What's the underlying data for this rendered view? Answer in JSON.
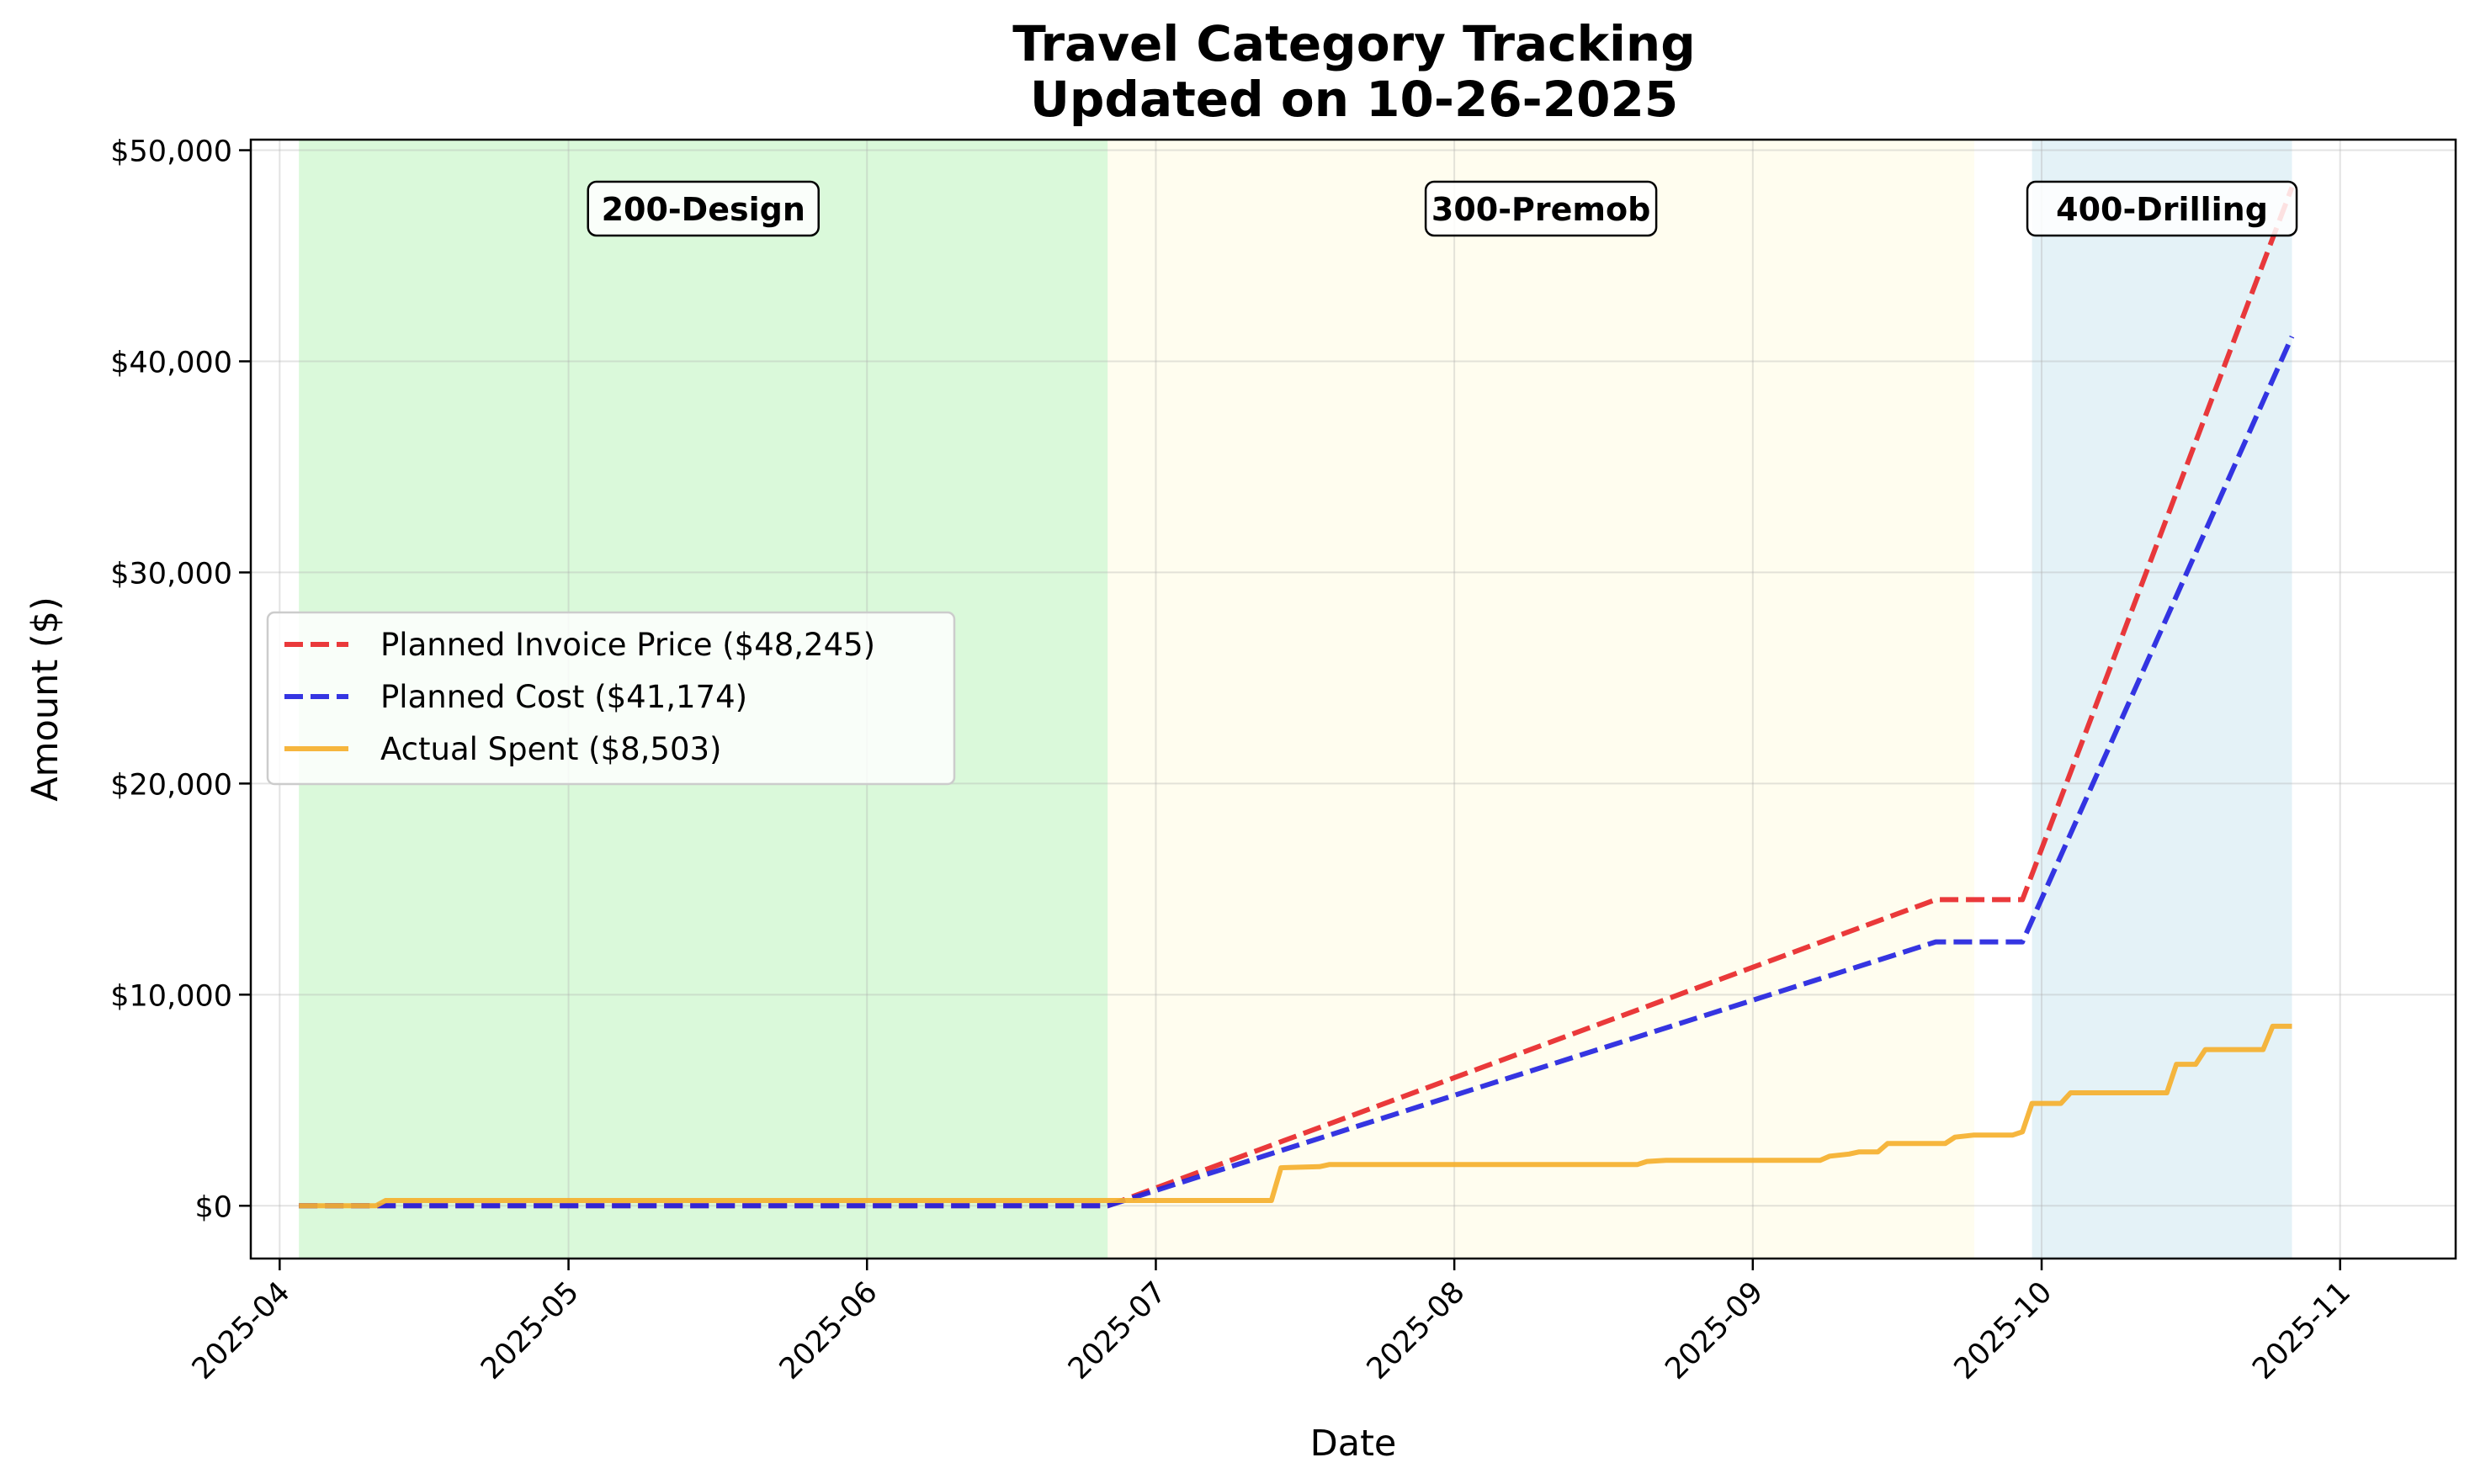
{
  "chart_data": {
    "type": "line",
    "title": "Travel Category Tracking",
    "subtitle": "Updated on 10-26-2025",
    "xlabel": "Date",
    "ylabel": "Amount ($)",
    "x_ticks": [
      "2025-04",
      "2025-05",
      "2025-06",
      "2025-07",
      "2025-08",
      "2025-09",
      "2025-10",
      "2025-11"
    ],
    "y_ticks": [
      "$0",
      "$10,000",
      "$20,000",
      "$30,000",
      "$40,000",
      "$50,000"
    ],
    "y_tick_values": [
      0,
      10000,
      20000,
      30000,
      40000,
      50000
    ],
    "xlim": [
      "2025-03-29",
      "2025-11-13"
    ],
    "ylim": [
      -2500,
      50500
    ],
    "grid": true,
    "legend_position": "center-left",
    "phases": [
      {
        "label": "200-Design",
        "start": "2025-04-03",
        "end": "2025-06-26",
        "color": "#90ee90"
      },
      {
        "label": "300-Premob",
        "start": "2025-06-26",
        "end": "2025-09-24",
        "color": "#fffacd"
      },
      {
        "label": "400-Drilling",
        "start": "2025-09-30",
        "end": "2025-10-27",
        "color": "#add8e6"
      }
    ],
    "series": [
      {
        "name": "Planned Invoice Price ($48,245)",
        "color": "#e8282a",
        "style": "dashed",
        "points": [
          [
            "2025-04-03",
            0
          ],
          [
            "2025-06-26",
            0
          ],
          [
            "2025-09-20",
            14500
          ],
          [
            "2025-09-29",
            14500
          ],
          [
            "2025-10-27",
            48245
          ]
        ]
      },
      {
        "name": "Planned Cost ($41,174)",
        "color": "#2424e0",
        "style": "dashed",
        "points": [
          [
            "2025-04-03",
            0
          ],
          [
            "2025-06-26",
            0
          ],
          [
            "2025-09-20",
            12500
          ],
          [
            "2025-09-29",
            12500
          ],
          [
            "2025-10-27",
            41174
          ]
        ]
      },
      {
        "name": "Actual Spent ($8,503)",
        "color": "#f5b02e",
        "style": "solid",
        "points": [
          [
            "2025-04-03",
            0
          ],
          [
            "2025-04-11",
            0
          ],
          [
            "2025-04-12",
            250
          ],
          [
            "2025-07-13",
            250
          ],
          [
            "2025-07-14",
            1800
          ],
          [
            "2025-07-18",
            1850
          ],
          [
            "2025-07-19",
            1950
          ],
          [
            "2025-08-20",
            1950
          ],
          [
            "2025-08-21",
            2100
          ],
          [
            "2025-08-23",
            2150
          ],
          [
            "2025-09-08",
            2150
          ],
          [
            "2025-09-09",
            2350
          ],
          [
            "2025-09-11",
            2450
          ],
          [
            "2025-09-12",
            2550
          ],
          [
            "2025-09-14",
            2550
          ],
          [
            "2025-09-15",
            2950
          ],
          [
            "2025-09-21",
            2950
          ],
          [
            "2025-09-22",
            3250
          ],
          [
            "2025-09-24",
            3350
          ],
          [
            "2025-09-28",
            3350
          ],
          [
            "2025-09-29",
            3500
          ],
          [
            "2025-09-30",
            4850
          ],
          [
            "2025-10-03",
            4850
          ],
          [
            "2025-10-04",
            5350
          ],
          [
            "2025-10-14",
            5350
          ],
          [
            "2025-10-15",
            6700
          ],
          [
            "2025-10-17",
            6700
          ],
          [
            "2025-10-18",
            7400
          ],
          [
            "2025-10-24",
            7400
          ],
          [
            "2025-10-25",
            8503
          ],
          [
            "2025-10-27",
            8503
          ]
        ]
      }
    ]
  }
}
